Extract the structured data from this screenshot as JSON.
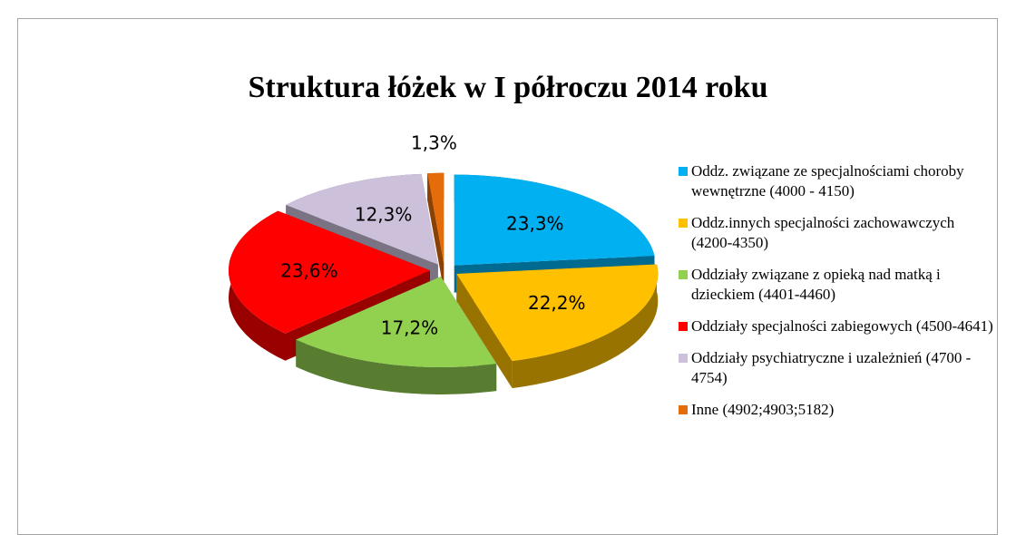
{
  "chart_data": {
    "type": "pie",
    "title": "Struktura łóżek  w I półroczu 2014 roku",
    "categories": [
      "Oddz. związane ze specjalnościami choroby wewnętrzne  (4000 - 4150)",
      "Oddz.innych specjalności zachowawczych (4200-4350)",
      "Oddziały związane z opieką nad matką i dzieckiem (4401-4460)",
      "Oddziały specjalności zabiegowych (4500-4641)",
      "Oddziały psychiatryczne i uzależnień (4700 - 4754)",
      "Inne (4902;4903;5182)"
    ],
    "values": [
      23.3,
      22.2,
      17.2,
      23.6,
      12.3,
      1.3
    ],
    "value_labels": [
      "23,3%",
      "22,2%",
      "17,2%",
      "23,6%",
      "12,3%",
      "1,3%"
    ],
    "colors": [
      "#00b0f0",
      "#ffc000",
      "#92d050",
      "#ff0000",
      "#ccc0da",
      "#e46c0a"
    ],
    "legend": "right"
  }
}
